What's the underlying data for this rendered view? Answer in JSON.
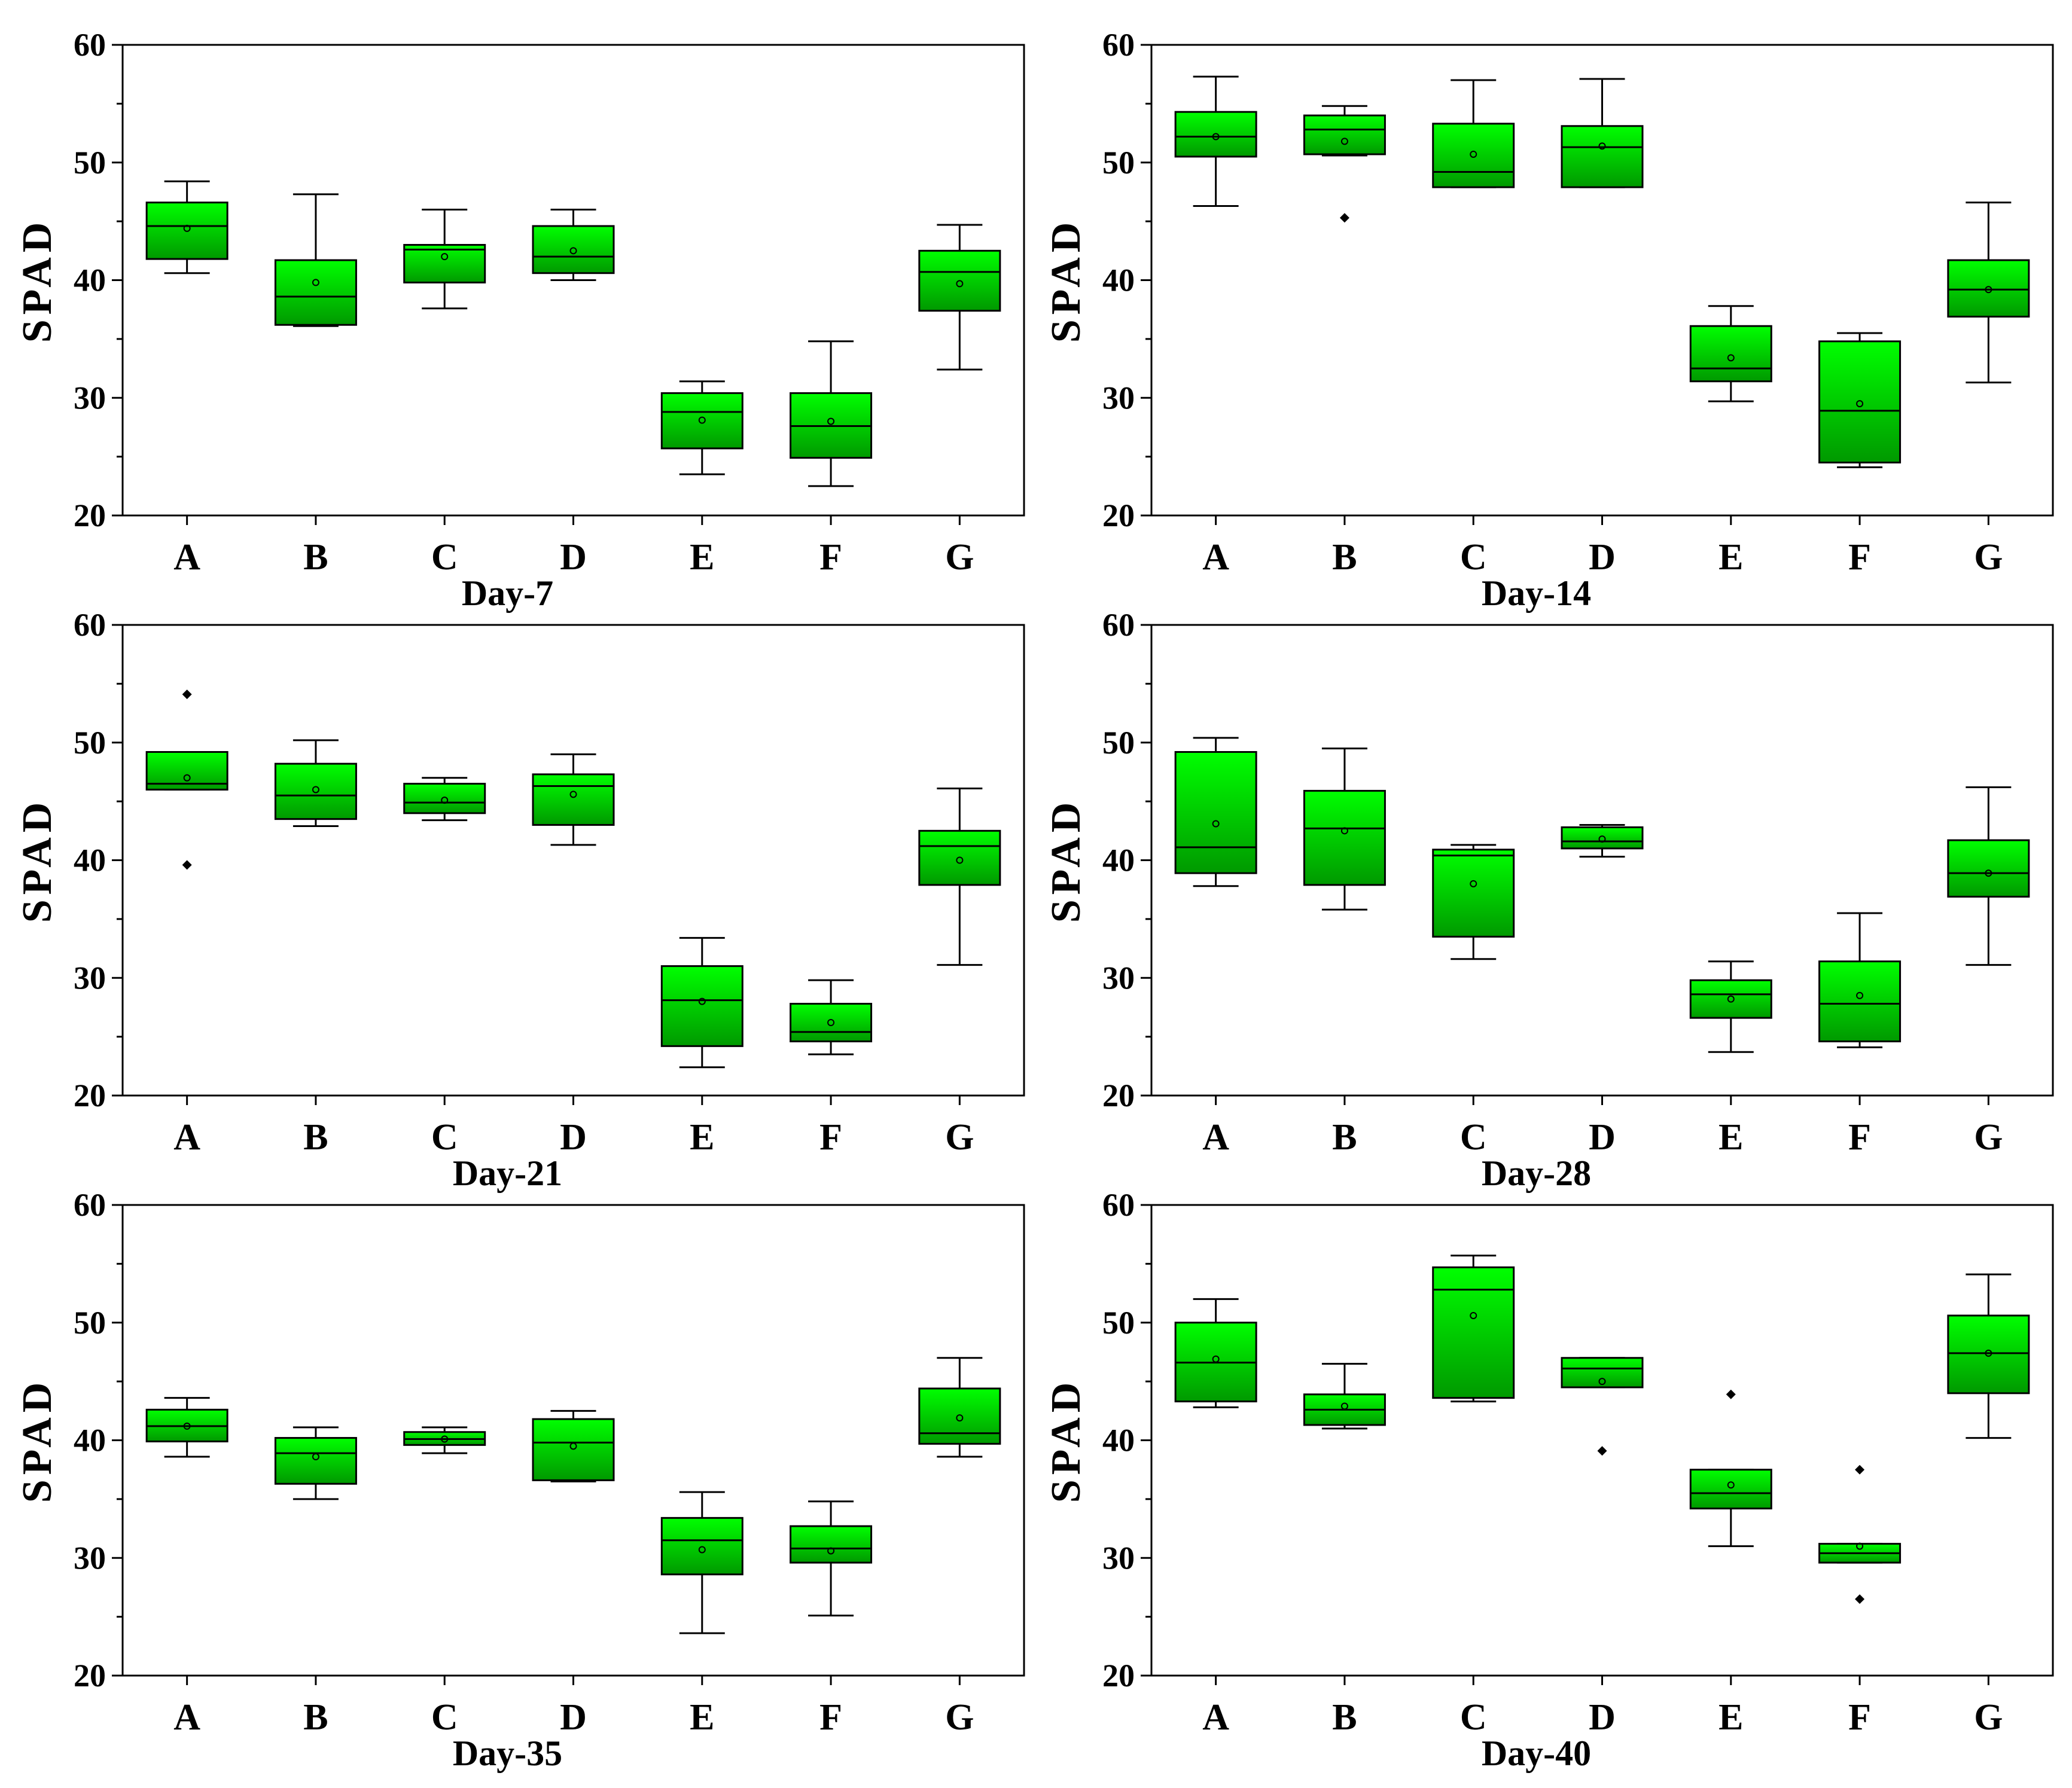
{
  "figure": {
    "box_fill_top": "#00ff00",
    "box_fill_bottom": "#009900",
    "line_color": "#000000"
  },
  "chart_data": [
    {
      "type": "box",
      "title": "Day-7",
      "xlabel": "Day-7",
      "ylabel": "SPAD",
      "ylim": [
        20,
        60
      ],
      "yticks": [
        20,
        30,
        40,
        50,
        60
      ],
      "categories": [
        "A",
        "B",
        "C",
        "D",
        "E",
        "F",
        "G"
      ],
      "boxes": [
        {
          "min": 40.6,
          "q1": 41.8,
          "median": 44.6,
          "q3": 46.6,
          "max": 48.4,
          "mean": 44.4,
          "outliers": []
        },
        {
          "min": 36.1,
          "q1": 36.2,
          "median": 38.6,
          "q3": 41.7,
          "max": 47.3,
          "mean": 39.8,
          "outliers": []
        },
        {
          "min": 37.6,
          "q1": 39.8,
          "median": 42.6,
          "q3": 43.0,
          "max": 46.0,
          "mean": 42.0,
          "outliers": []
        },
        {
          "min": 40.0,
          "q1": 40.6,
          "median": 42.0,
          "q3": 44.6,
          "max": 46.0,
          "mean": 42.5,
          "outliers": []
        },
        {
          "min": 23.5,
          "q1": 25.7,
          "median": 28.8,
          "q3": 30.4,
          "max": 31.4,
          "mean": 28.1,
          "outliers": []
        },
        {
          "min": 22.5,
          "q1": 24.9,
          "median": 27.6,
          "q3": 30.4,
          "max": 34.8,
          "mean": 28.0,
          "outliers": []
        },
        {
          "min": 32.4,
          "q1": 37.4,
          "median": 40.7,
          "q3": 42.5,
          "max": 44.7,
          "mean": 39.7,
          "outliers": []
        }
      ]
    },
    {
      "type": "box",
      "title": "Day-14",
      "xlabel": "Day-14",
      "ylabel": "SPAD",
      "ylim": [
        20,
        60
      ],
      "yticks": [
        20,
        30,
        40,
        50,
        60
      ],
      "categories": [
        "A",
        "B",
        "C",
        "D",
        "E",
        "F",
        "G"
      ],
      "boxes": [
        {
          "min": 46.3,
          "q1": 50.5,
          "median": 52.2,
          "q3": 54.3,
          "max": 57.3,
          "mean": 52.2,
          "outliers": []
        },
        {
          "min": 50.6,
          "q1": 50.7,
          "median": 52.8,
          "q3": 54.0,
          "max": 54.8,
          "mean": 51.8,
          "outliers": [
            45.3
          ]
        },
        {
          "min": 47.9,
          "q1": 47.9,
          "median": 49.2,
          "q3": 53.3,
          "max": 57.0,
          "mean": 50.7,
          "outliers": []
        },
        {
          "min": 47.9,
          "q1": 47.9,
          "median": 51.3,
          "q3": 53.1,
          "max": 57.1,
          "mean": 51.4,
          "outliers": []
        },
        {
          "min": 29.7,
          "q1": 31.4,
          "median": 32.5,
          "q3": 36.1,
          "max": 37.8,
          "mean": 33.4,
          "outliers": []
        },
        {
          "min": 24.1,
          "q1": 24.5,
          "median": 28.9,
          "q3": 34.8,
          "max": 35.5,
          "mean": 29.5,
          "outliers": []
        },
        {
          "min": 31.3,
          "q1": 36.9,
          "median": 39.2,
          "q3": 41.7,
          "max": 46.6,
          "mean": 39.2,
          "outliers": []
        }
      ]
    },
    {
      "type": "box",
      "title": "Day-21",
      "xlabel": "Day-21",
      "ylabel": "SPAD",
      "ylim": [
        20,
        60
      ],
      "yticks": [
        20,
        30,
        40,
        50,
        60
      ],
      "categories": [
        "A",
        "B",
        "C",
        "D",
        "E",
        "F",
        "G"
      ],
      "boxes": [
        {
          "min": 46.0,
          "q1": 46.0,
          "median": 46.5,
          "q3": 49.2,
          "max": 49.2,
          "mean": 47.0,
          "outliers": [
            54.1,
            39.6
          ]
        },
        {
          "min": 42.9,
          "q1": 43.5,
          "median": 45.5,
          "q3": 48.2,
          "max": 50.2,
          "mean": 46.0,
          "outliers": []
        },
        {
          "min": 43.4,
          "q1": 44.0,
          "median": 44.9,
          "q3": 46.5,
          "max": 47.0,
          "mean": 45.1,
          "outliers": []
        },
        {
          "min": 41.3,
          "q1": 43.0,
          "median": 46.3,
          "q3": 47.3,
          "max": 49.0,
          "mean": 45.6,
          "outliers": []
        },
        {
          "min": 22.4,
          "q1": 24.2,
          "median": 28.1,
          "q3": 31.0,
          "max": 33.4,
          "mean": 28.0,
          "outliers": []
        },
        {
          "min": 23.5,
          "q1": 24.6,
          "median": 25.4,
          "q3": 27.8,
          "max": 29.8,
          "mean": 26.2,
          "outliers": []
        },
        {
          "min": 31.1,
          "q1": 37.9,
          "median": 41.2,
          "q3": 42.5,
          "max": 46.1,
          "mean": 40.0,
          "outliers": []
        }
      ]
    },
    {
      "type": "box",
      "title": "Day-28",
      "xlabel": "Day-28",
      "ylabel": "SPAD",
      "ylim": [
        20,
        60
      ],
      "yticks": [
        20,
        30,
        40,
        50,
        60
      ],
      "categories": [
        "A",
        "B",
        "C",
        "D",
        "E",
        "F",
        "G"
      ],
      "boxes": [
        {
          "min": 37.8,
          "q1": 38.9,
          "median": 41.1,
          "q3": 49.2,
          "max": 50.4,
          "mean": 43.1,
          "outliers": []
        },
        {
          "min": 35.8,
          "q1": 37.9,
          "median": 42.7,
          "q3": 45.9,
          "max": 49.5,
          "mean": 42.5,
          "outliers": []
        },
        {
          "min": 31.6,
          "q1": 33.5,
          "median": 40.4,
          "q3": 40.9,
          "max": 41.3,
          "mean": 38.0,
          "outliers": []
        },
        {
          "min": 40.3,
          "q1": 41.0,
          "median": 41.6,
          "q3": 42.8,
          "max": 43.0,
          "mean": 41.8,
          "outliers": []
        },
        {
          "min": 23.7,
          "q1": 26.6,
          "median": 28.6,
          "q3": 29.8,
          "max": 31.4,
          "mean": 28.2,
          "outliers": []
        },
        {
          "min": 24.1,
          "q1": 24.6,
          "median": 27.8,
          "q3": 31.4,
          "max": 35.5,
          "mean": 28.5,
          "outliers": []
        },
        {
          "min": 31.1,
          "q1": 36.9,
          "median": 38.9,
          "q3": 41.7,
          "max": 46.2,
          "mean": 38.9,
          "outliers": []
        }
      ]
    },
    {
      "type": "box",
      "title": "Day-35",
      "xlabel": "Day-35",
      "ylabel": "SPAD",
      "ylim": [
        20,
        60
      ],
      "yticks": [
        20,
        30,
        40,
        50,
        60
      ],
      "categories": [
        "A",
        "B",
        "C",
        "D",
        "E",
        "F",
        "G"
      ],
      "boxes": [
        {
          "min": 38.6,
          "q1": 39.9,
          "median": 41.2,
          "q3": 42.6,
          "max": 43.6,
          "mean": 41.2,
          "outliers": []
        },
        {
          "min": 35.0,
          "q1": 36.3,
          "median": 38.9,
          "q3": 40.2,
          "max": 41.1,
          "mean": 38.6,
          "outliers": []
        },
        {
          "min": 38.9,
          "q1": 39.6,
          "median": 40.1,
          "q3": 40.7,
          "max": 41.1,
          "mean": 40.1,
          "outliers": []
        },
        {
          "min": 36.5,
          "q1": 36.6,
          "median": 39.8,
          "q3": 41.8,
          "max": 42.5,
          "mean": 39.5,
          "outliers": []
        },
        {
          "min": 23.6,
          "q1": 28.6,
          "median": 31.5,
          "q3": 33.4,
          "max": 35.6,
          "mean": 30.7,
          "outliers": []
        },
        {
          "min": 25.1,
          "q1": 29.6,
          "median": 30.8,
          "q3": 32.7,
          "max": 34.8,
          "mean": 30.6,
          "outliers": []
        },
        {
          "min": 38.6,
          "q1": 39.7,
          "median": 40.6,
          "q3": 44.4,
          "max": 47.0,
          "mean": 41.9,
          "outliers": []
        }
      ]
    },
    {
      "type": "box",
      "title": "Day-40",
      "xlabel": "Day-40",
      "ylabel": "SPAD",
      "ylim": [
        20,
        60
      ],
      "yticks": [
        20,
        30,
        40,
        50,
        60
      ],
      "categories": [
        "A",
        "B",
        "C",
        "D",
        "E",
        "F",
        "G"
      ],
      "boxes": [
        {
          "min": 42.8,
          "q1": 43.3,
          "median": 46.6,
          "q3": 50.0,
          "max": 52.0,
          "mean": 46.9,
          "outliers": []
        },
        {
          "min": 41.0,
          "q1": 41.3,
          "median": 42.6,
          "q3": 43.9,
          "max": 46.5,
          "mean": 42.9,
          "outliers": []
        },
        {
          "min": 43.3,
          "q1": 43.6,
          "median": 52.8,
          "q3": 54.7,
          "max": 55.7,
          "mean": 50.6,
          "outliers": []
        },
        {
          "min": 44.5,
          "q1": 44.5,
          "median": 46.1,
          "q3": 47.0,
          "max": 47.0,
          "mean": 45.0,
          "outliers": [
            39.1
          ]
        },
        {
          "min": 31.0,
          "q1": 34.2,
          "median": 35.5,
          "q3": 37.5,
          "max": 37.5,
          "mean": 36.2,
          "outliers": [
            43.9
          ]
        },
        {
          "min": 29.6,
          "q1": 29.6,
          "median": 30.4,
          "q3": 31.2,
          "max": 31.2,
          "mean": 31.0,
          "outliers": [
            37.5,
            26.5
          ]
        },
        {
          "min": 40.2,
          "q1": 44.0,
          "median": 47.4,
          "q3": 50.6,
          "max": 54.1,
          "mean": 47.4,
          "outliers": []
        }
      ]
    }
  ]
}
